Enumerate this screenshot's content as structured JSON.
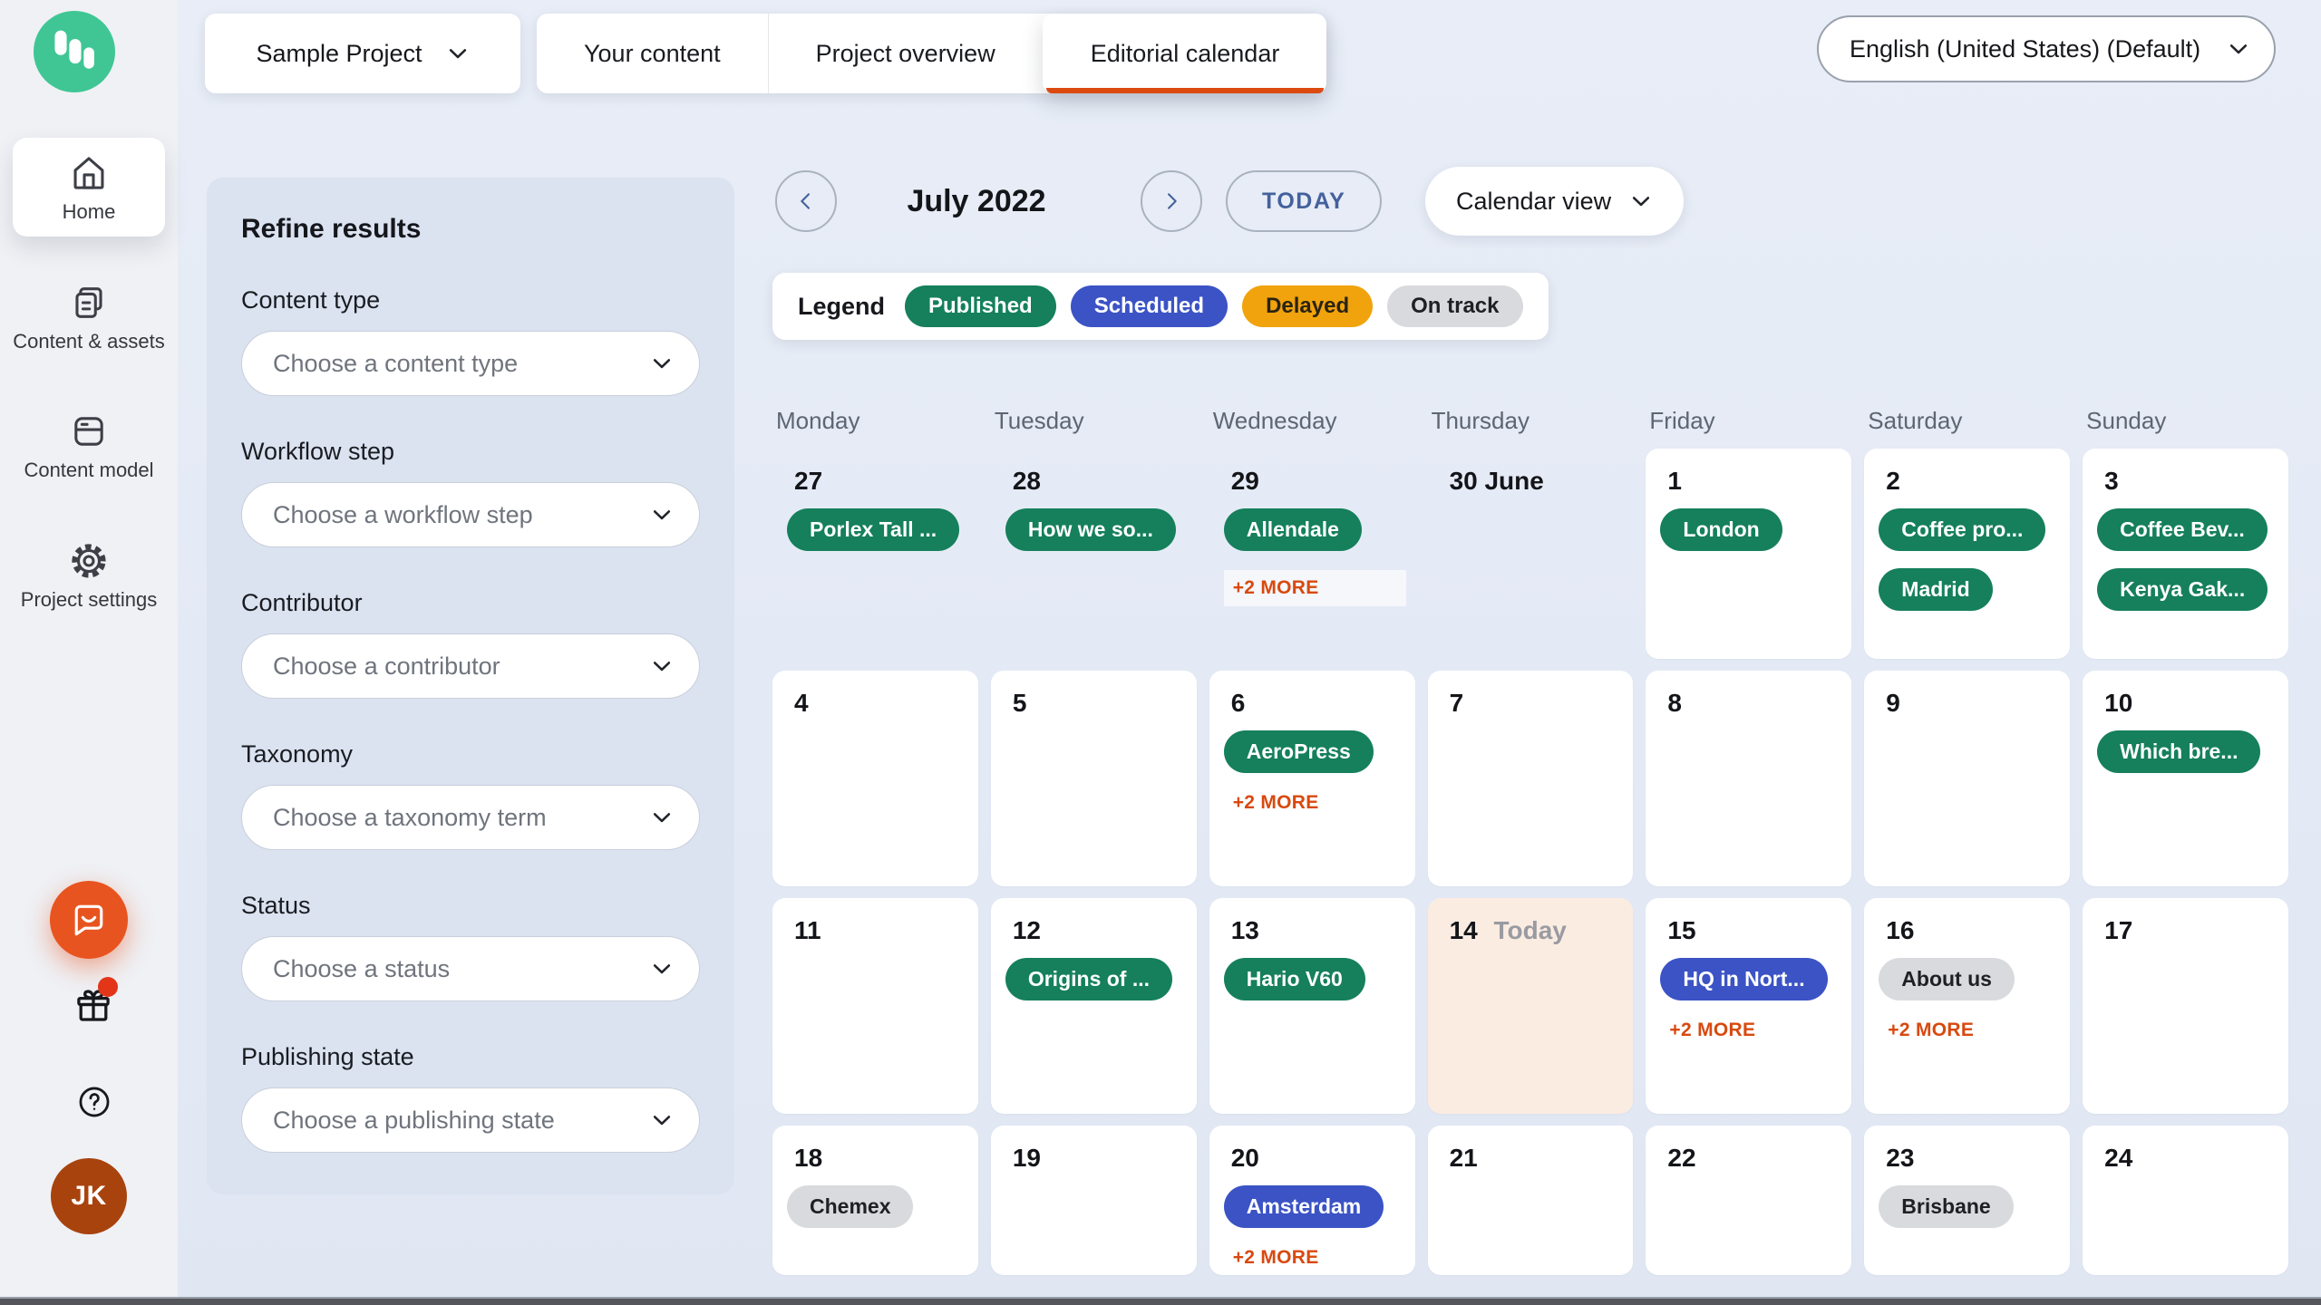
{
  "app": {
    "logo_color": "#3fc694",
    "accent_orange": "#dc4a0f"
  },
  "sidebar": {
    "items": [
      {
        "label": "Home",
        "icon": "home-icon",
        "active": true
      },
      {
        "label": "Content & assets",
        "icon": "content-assets-icon",
        "active": false
      },
      {
        "label": "Content model",
        "icon": "content-model-icon",
        "active": false
      },
      {
        "label": "Project settings",
        "icon": "gear-icon",
        "active": false
      }
    ],
    "avatar_initials": "JK"
  },
  "topbar": {
    "project_selector": "Sample Project",
    "tabs": [
      {
        "label": "Your content",
        "active": false
      },
      {
        "label": "Project overview",
        "active": false
      },
      {
        "label": "Editorial calendar",
        "active": true
      }
    ],
    "language_selector": "English (United States) (Default)"
  },
  "filters": {
    "title": "Refine results",
    "groups": [
      {
        "label": "Content type",
        "placeholder": "Choose a content type"
      },
      {
        "label": "Workflow step",
        "placeholder": "Choose a workflow step"
      },
      {
        "label": "Contributor",
        "placeholder": "Choose a contributor"
      },
      {
        "label": "Taxonomy",
        "placeholder": "Choose a taxonomy term"
      },
      {
        "label": "Status",
        "placeholder": "Choose a status"
      },
      {
        "label": "Publishing state",
        "placeholder": "Choose a publishing state"
      }
    ]
  },
  "calendar": {
    "month_label": "July 2022",
    "today_button": "TODAY",
    "view_selector": "Calendar view",
    "today_label": "Today",
    "status_colors": {
      "published": {
        "bg": "#15805b",
        "text": "#ffffff"
      },
      "scheduled": {
        "bg": "#3b53c5",
        "text": "#ffffff"
      },
      "delayed": {
        "bg": "#f0a30c",
        "text": "#2b2313"
      },
      "ontrack": {
        "bg": "#d9dadd",
        "text": "#1e2025"
      }
    },
    "legend": {
      "title": "Legend",
      "items": [
        {
          "label": "Published",
          "status": "published"
        },
        {
          "label": "Scheduled",
          "status": "scheduled"
        },
        {
          "label": "Delayed",
          "status": "delayed"
        },
        {
          "label": "On track",
          "status": "ontrack"
        }
      ]
    },
    "weekday_headers": [
      "Monday",
      "Tuesday",
      "Wednesday",
      "Thursday",
      "Friday",
      "Saturday",
      "Sunday"
    ],
    "weeks": [
      [
        {
          "day": "27",
          "outside": true,
          "events": [
            {
              "title": "Porlex Tall ...",
              "status": "published"
            }
          ]
        },
        {
          "day": "28",
          "outside": true,
          "events": [
            {
              "title": "How we so...",
              "status": "published"
            }
          ]
        },
        {
          "day": "29",
          "outside": true,
          "events": [
            {
              "title": "Allendale",
              "status": "published"
            }
          ],
          "more": "+2 MORE",
          "more_bg": true
        },
        {
          "day": "30 June",
          "outside": true,
          "events": []
        },
        {
          "day": "1",
          "events": [
            {
              "title": "London",
              "status": "published"
            }
          ]
        },
        {
          "day": "2",
          "events": [
            {
              "title": "Coffee pro...",
              "status": "published"
            },
            {
              "title": "Madrid",
              "status": "published"
            }
          ]
        },
        {
          "day": "3",
          "events": [
            {
              "title": "Coffee Bev...",
              "status": "published"
            },
            {
              "title": "Kenya Gak...",
              "status": "published"
            }
          ]
        }
      ],
      [
        {
          "day": "4",
          "events": []
        },
        {
          "day": "5",
          "events": []
        },
        {
          "day": "6",
          "events": [
            {
              "title": "AeroPress",
              "status": "published"
            }
          ],
          "more": "+2 MORE"
        },
        {
          "day": "7",
          "events": []
        },
        {
          "day": "8",
          "events": []
        },
        {
          "day": "9",
          "events": []
        },
        {
          "day": "10",
          "events": [
            {
              "title": "Which bre...",
              "status": "published"
            }
          ]
        }
      ],
      [
        {
          "day": "11",
          "events": []
        },
        {
          "day": "12",
          "events": [
            {
              "title": "Origins of ...",
              "status": "published"
            }
          ]
        },
        {
          "day": "13",
          "events": [
            {
              "title": "Hario V60",
              "status": "published"
            }
          ]
        },
        {
          "day": "14",
          "today": true,
          "events": []
        },
        {
          "day": "15",
          "events": [
            {
              "title": "HQ in Nort...",
              "status": "scheduled"
            }
          ],
          "more": "+2 MORE"
        },
        {
          "day": "16",
          "events": [
            {
              "title": "About us",
              "status": "ontrack"
            }
          ],
          "more": "+2 MORE"
        },
        {
          "day": "17",
          "events": []
        }
      ],
      [
        {
          "day": "18",
          "events": [
            {
              "title": "Chemex",
              "status": "ontrack"
            }
          ]
        },
        {
          "day": "19",
          "events": []
        },
        {
          "day": "20",
          "events": [
            {
              "title": "Amsterdam",
              "status": "scheduled"
            }
          ],
          "more": "+2 MORE"
        },
        {
          "day": "21",
          "events": []
        },
        {
          "day": "22",
          "events": []
        },
        {
          "day": "23",
          "events": [
            {
              "title": "Brisbane",
              "status": "ontrack"
            }
          ]
        },
        {
          "day": "24",
          "events": []
        }
      ]
    ]
  }
}
